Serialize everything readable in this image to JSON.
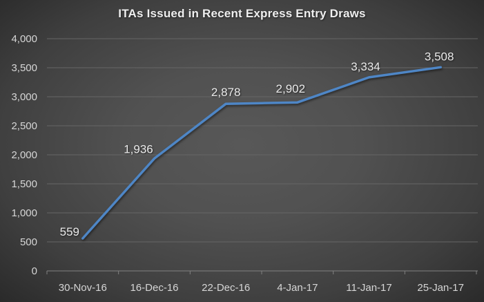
{
  "chart_data": {
    "type": "line",
    "title": "ITAs Issued in Recent Express Entry Draws",
    "categories": [
      "30-Nov-16",
      "16-Dec-16",
      "22-Dec-16",
      "4-Jan-17",
      "11-Jan-17",
      "25-Jan-17"
    ],
    "series": [
      {
        "name": "ITAs Issued",
        "values": [
          559,
          1936,
          2878,
          2902,
          3334,
          3508
        ],
        "data_labels": [
          "559",
          "1,936",
          "2,878",
          "2,902",
          "3,334",
          "3,508"
        ],
        "color": "#4e86c6"
      }
    ],
    "xlabel": "",
    "ylabel": "",
    "ylim": [
      0,
      4000
    ],
    "ytick_step": 500,
    "y_tick_labels": [
      "0",
      "500",
      "1,000",
      "1,500",
      "2,000",
      "2,500",
      "3,000",
      "3,500",
      "4,000"
    ],
    "grid": true,
    "legend_position": "none",
    "colors": {
      "background_center": "#585858",
      "background_edge": "#2a2a2a",
      "gridline": "#666666",
      "axis_line": "#828282",
      "axis_text": "#d6d6d6",
      "title_text": "#efefef",
      "data_label_text": "#eaeaea",
      "line": "#4e86c6"
    }
  }
}
